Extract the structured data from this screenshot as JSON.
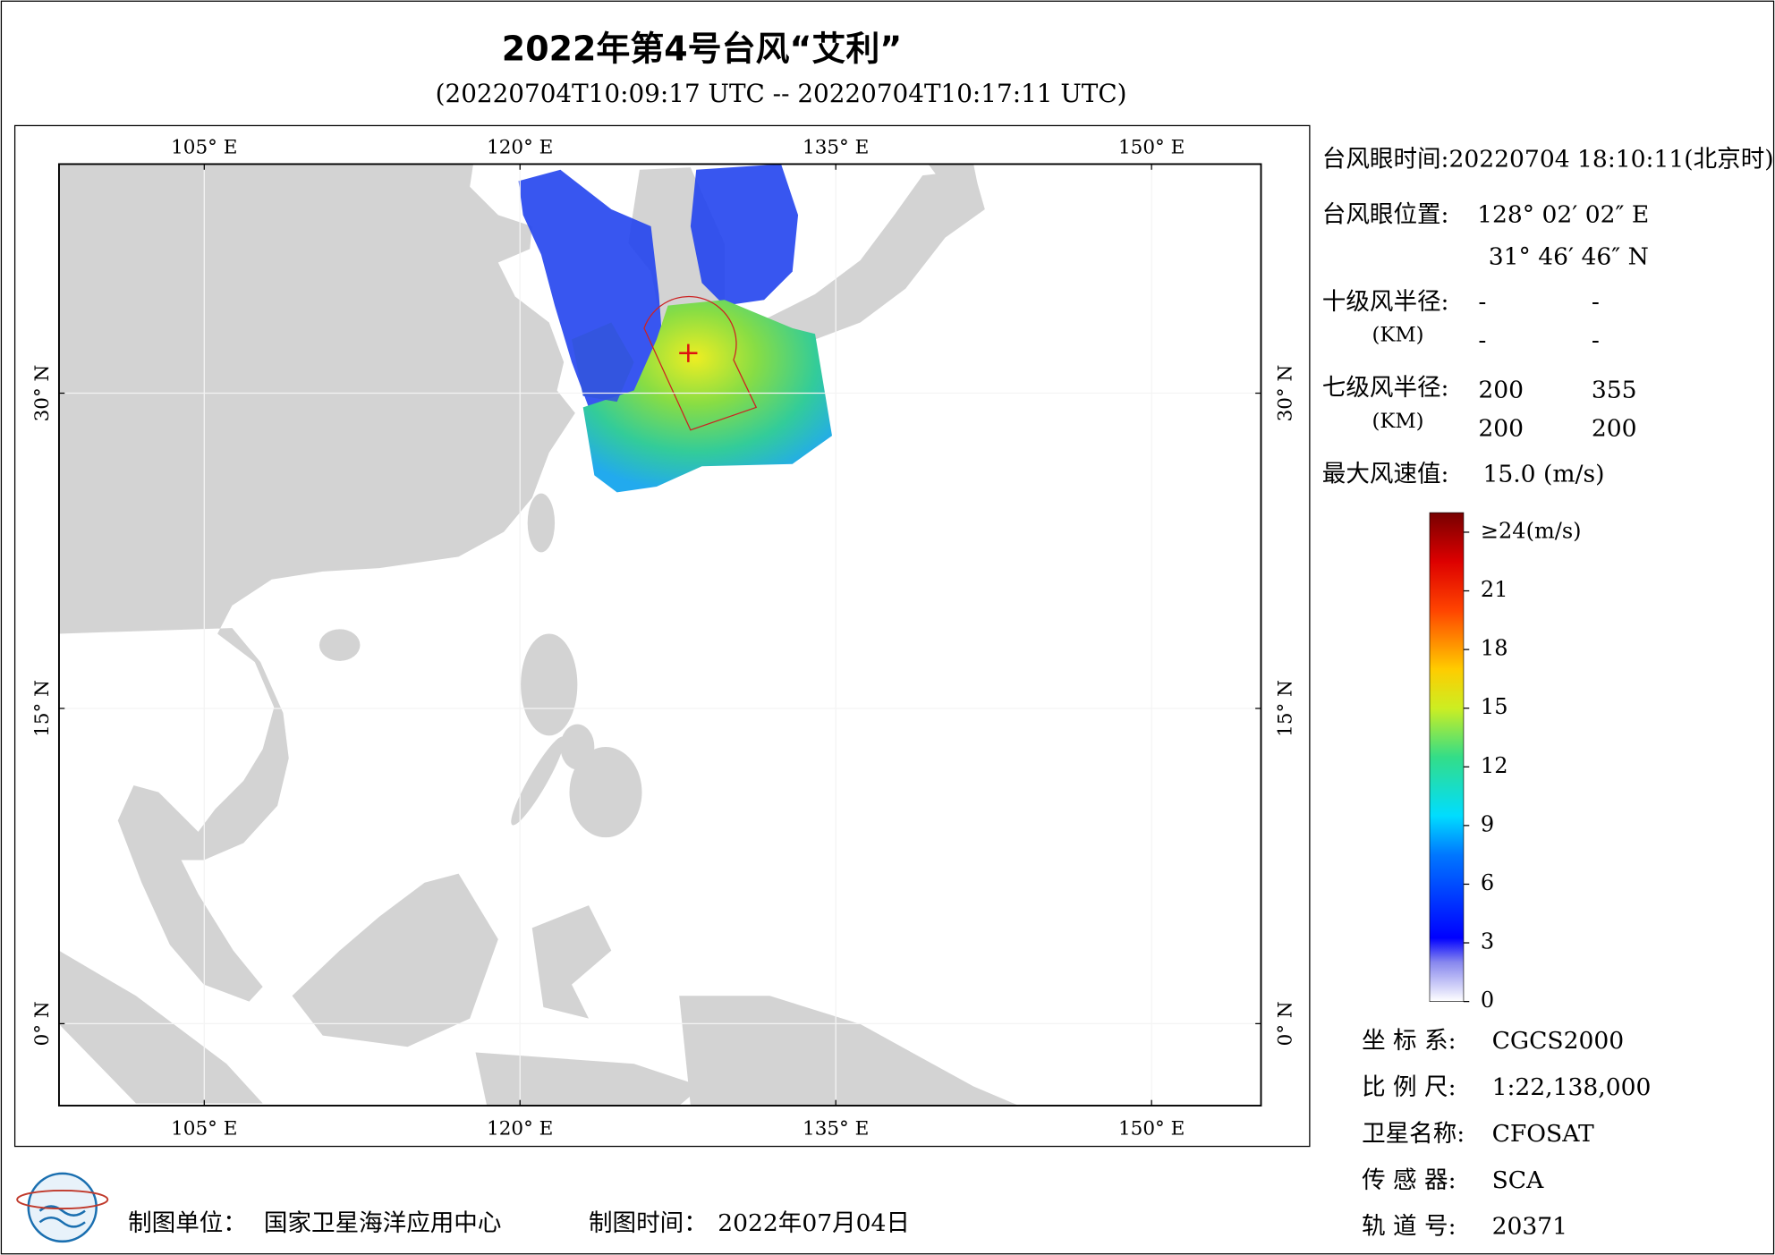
{
  "title": "2022年第4号台风“艾利”",
  "subtitle": "(20220704T10:09:17 UTC -- 20220704T10:17:11 UTC)",
  "map": {
    "xlim": [
      98.1,
      155.2
    ],
    "ylim": [
      -3.9,
      40.9
    ],
    "xticks": [
      {
        "value": 105,
        "label": "105° E"
      },
      {
        "value": 120,
        "label": "120° E"
      },
      {
        "value": 135,
        "label": "135° E"
      },
      {
        "value": 150,
        "label": "150° E"
      }
    ],
    "yticks": [
      {
        "value": 0,
        "label": "0° N"
      },
      {
        "value": 15,
        "label": "15° N"
      },
      {
        "value": 30,
        "label": "30° N"
      }
    ],
    "grid": true
  },
  "info": {
    "eye_time": "台风眼时间:20220704 18:10:11(北京时)",
    "eye_position_label": "台风眼位置:",
    "eye_lon": "128° 02′ 02″ E",
    "eye_lat": "31° 46′ 46″ N",
    "r10_label": "十级风半径:",
    "r10_unit": "(KM)",
    "r10_values": [
      "-",
      "-",
      "-",
      "-"
    ],
    "r7_label": "七级风半径:",
    "r7_unit": "(KM)",
    "r7_values": [
      200,
      355,
      200,
      200
    ],
    "max_wind_label": "最大风速值:",
    "max_wind": "15.0  (m/s)"
  },
  "colorbar": {
    "lim": [
      0,
      25
    ],
    "ticks": [
      0,
      3,
      6,
      9,
      12,
      15,
      18,
      21,
      {
        "value": 24,
        "label": "≥24(m/s)"
      }
    ]
  },
  "meta": [
    {
      "label": "坐 标 系:",
      "value": "CGCS2000"
    },
    {
      "label": "比 例 尺:",
      "value": "1:22,138,000"
    },
    {
      "label": "卫星名称:",
      "value": "CFOSAT"
    },
    {
      "label": "传 感 器:",
      "value": "SCA"
    },
    {
      "label": "轨 道 号:",
      "value": "20371"
    }
  ],
  "footer": {
    "unit_label": "制图单位：",
    "unit": "国家卫星海洋应用中心",
    "time_label": "制图时间：",
    "time": "2022年07月04日"
  }
}
